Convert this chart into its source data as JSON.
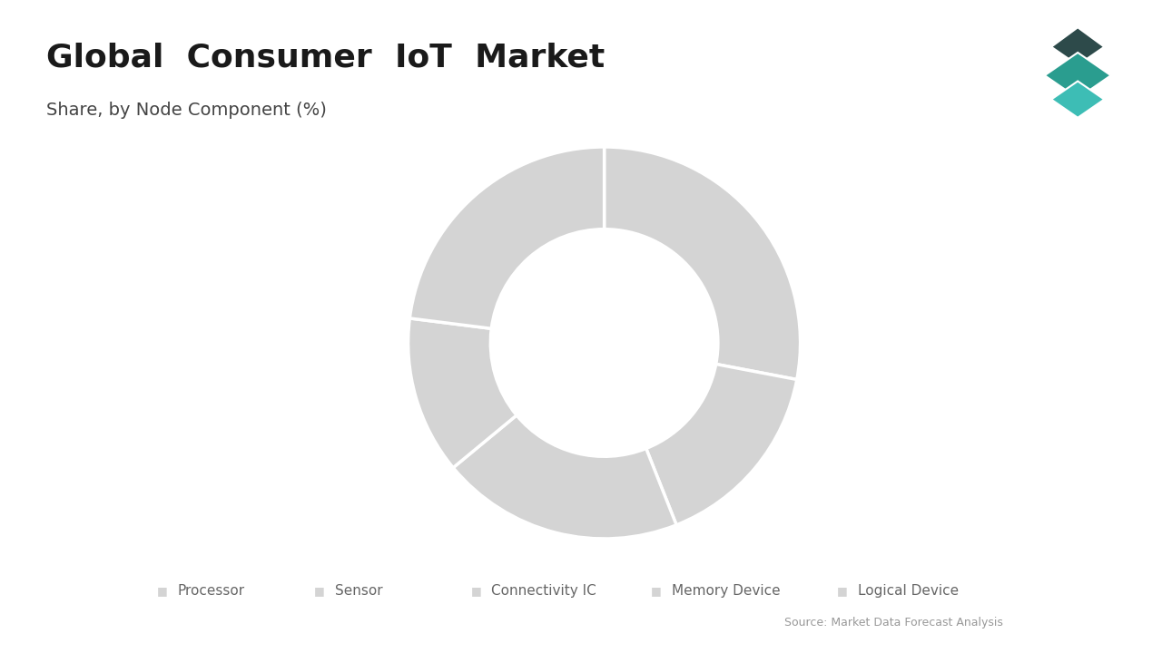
{
  "title": "Global  Consumer  IoT  Market",
  "subtitle": "Share, by Node Component (%)",
  "segments": [
    {
      "label": "Processor",
      "value": 28
    },
    {
      "label": "Sensor",
      "value": 16
    },
    {
      "label": "Connectivity IC",
      "value": 20
    },
    {
      "label": "Memory Device",
      "value": 13
    },
    {
      "label": "Logical Device",
      "value": 23
    }
  ],
  "donut_color": "#d4d4d4",
  "donut_edge_color": "#ffffff",
  "background_color": "#ffffff",
  "title_color": "#1a1a1a",
  "subtitle_color": "#444444",
  "legend_color": "#666666",
  "source_text": "Source: Market Data Forecast Analysis",
  "source_color": "#999999",
  "accent_bar_color": "#2a9d8f",
  "start_angle": 90,
  "logo_colors": [
    "#2a9d8f",
    "#1a6b66",
    "#3dbdb5"
  ]
}
